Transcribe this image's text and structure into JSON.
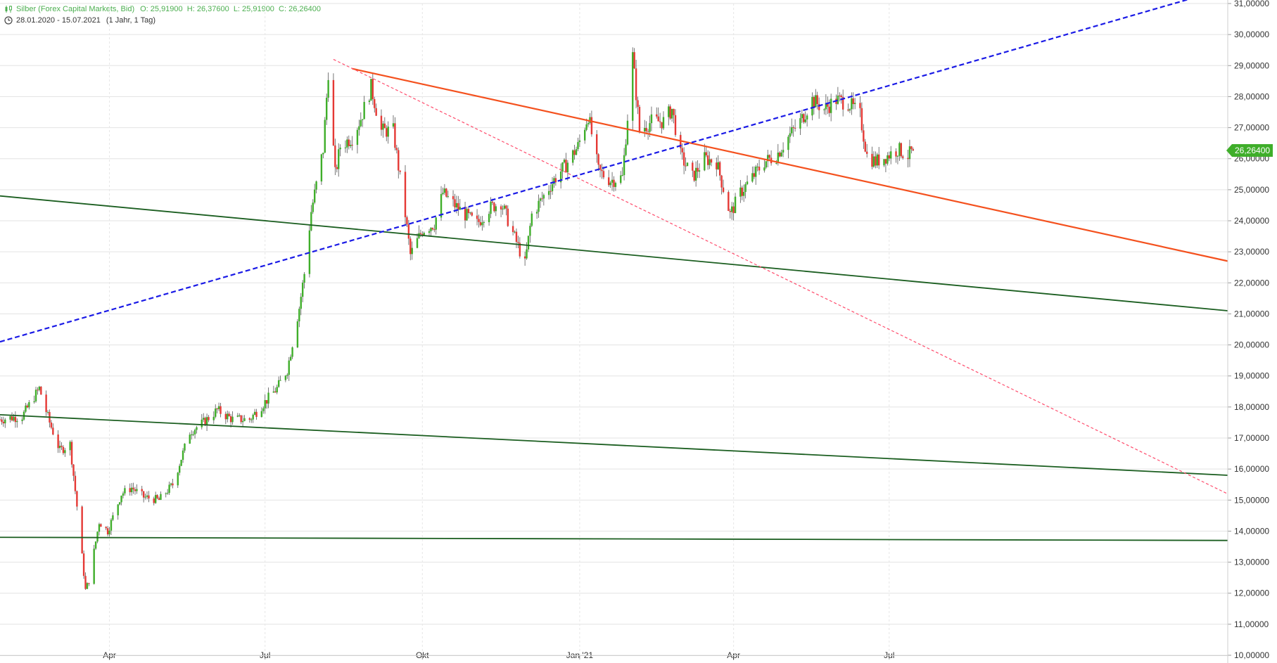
{
  "header": {
    "title": "Silber (Forex Capital Markets, Bid)",
    "ohlc": "O: 25,91900  H: 26,37600  L: 25,91900  C: 26,26400",
    "range": "28.01.2020 - 15.07.2021",
    "range_note": "(1 Jahr, 1 Tag)"
  },
  "colors": {
    "up": "#3fae2a",
    "down": "#e53935",
    "grid": "#e3e3e3",
    "green_line": "#1b5e20",
    "orange_line": "#f4511e",
    "blue_line": "#1a1ae6",
    "pink_line": "#ff4d6d",
    "price_label_bg": "#3fae2a"
  },
  "chart_data": {
    "type": "candlestick",
    "symbol": "Silber",
    "period": "28.01.2020 - 15.07.2021",
    "yaxis": {
      "position": "right",
      "ylim": [
        10,
        31
      ],
      "ticks": [
        {
          "value": 31,
          "label": "31,00000"
        },
        {
          "value": 30,
          "label": "30,00000"
        },
        {
          "value": 29,
          "label": "29,00000"
        },
        {
          "value": 28,
          "label": "28,00000"
        },
        {
          "value": 27,
          "label": "27,00000"
        },
        {
          "value": 26,
          "label": "26,00000"
        },
        {
          "value": 25,
          "label": "25,00000"
        },
        {
          "value": 24,
          "label": "24,00000"
        },
        {
          "value": 23,
          "label": "23,00000"
        },
        {
          "value": 22,
          "label": "22,00000"
        },
        {
          "value": 21,
          "label": "21,00000"
        },
        {
          "value": 20,
          "label": "20,00000"
        },
        {
          "value": 19,
          "label": "19,00000"
        },
        {
          "value": 18,
          "label": "18,00000"
        },
        {
          "value": 17,
          "label": "17,00000"
        },
        {
          "value": 16,
          "label": "16,00000"
        },
        {
          "value": 15,
          "label": "15,00000"
        },
        {
          "value": 14,
          "label": "14,00000"
        },
        {
          "value": 13,
          "label": "13,00000"
        },
        {
          "value": 12,
          "label": "12,00000"
        },
        {
          "value": 11,
          "label": "11,00000"
        },
        {
          "value": 10,
          "label": "10,00000"
        }
      ]
    },
    "xaxis": {
      "range": [
        "2020-01-28",
        "2022-01-15"
      ],
      "ticks": [
        {
          "date": "2020-04-01",
          "label": "Apr"
        },
        {
          "date": "2020-07-01",
          "label": "Jul"
        },
        {
          "date": "2020-10-01",
          "label": "Okt"
        },
        {
          "date": "2021-01-01",
          "label": "Jan '21"
        },
        {
          "date": "2021-04-01",
          "label": "Apr"
        },
        {
          "date": "2021-07-01",
          "label": "Jul"
        }
      ]
    },
    "grid": true,
    "last_price": {
      "value": 26.264,
      "label": "26,26400"
    },
    "price_path": [
      [
        "2020-01-28",
        17.6
      ],
      [
        "2020-02-10",
        17.7
      ],
      [
        "2020-02-20",
        18.6
      ],
      [
        "2020-02-26",
        17.5
      ],
      [
        "2020-03-03",
        16.6
      ],
      [
        "2020-03-09",
        16.8
      ],
      [
        "2020-03-13",
        14.8
      ],
      [
        "2020-03-18",
        12.1
      ],
      [
        "2020-03-20",
        12.4
      ],
      [
        "2020-03-26",
        14.3
      ],
      [
        "2020-03-31",
        14.0
      ],
      [
        "2020-04-08",
        15.2
      ],
      [
        "2020-04-14",
        15.4
      ],
      [
        "2020-04-21",
        15.1
      ],
      [
        "2020-04-30",
        15.0
      ],
      [
        "2020-05-08",
        15.5
      ],
      [
        "2020-05-18",
        17.2
      ],
      [
        "2020-05-26",
        17.5
      ],
      [
        "2020-06-03",
        17.9
      ],
      [
        "2020-06-12",
        17.6
      ],
      [
        "2020-06-22",
        17.6
      ],
      [
        "2020-06-30",
        18.1
      ],
      [
        "2020-07-08",
        18.6
      ],
      [
        "2020-07-14",
        19.2
      ],
      [
        "2020-07-21",
        21.2
      ],
      [
        "2020-07-24",
        22.3
      ],
      [
        "2020-07-28",
        24.3
      ],
      [
        "2020-08-04",
        26.3
      ],
      [
        "2020-08-07",
        28.8
      ],
      [
        "2020-08-11",
        25.5
      ],
      [
        "2020-08-14",
        26.4
      ],
      [
        "2020-08-21",
        26.7
      ],
      [
        "2020-08-26",
        27.3
      ],
      [
        "2020-09-01",
        28.3
      ],
      [
        "2020-09-07",
        26.9
      ],
      [
        "2020-09-14",
        26.9
      ],
      [
        "2020-09-21",
        24.2
      ],
      [
        "2020-09-24",
        22.9
      ],
      [
        "2020-10-01",
        23.7
      ],
      [
        "2020-10-08",
        23.9
      ],
      [
        "2020-10-13",
        24.9
      ],
      [
        "2020-10-20",
        24.5
      ],
      [
        "2020-10-26",
        24.2
      ],
      [
        "2020-11-02",
        23.9
      ],
      [
        "2020-11-09",
        24.4
      ],
      [
        "2020-11-16",
        24.6
      ],
      [
        "2020-11-23",
        23.6
      ],
      [
        "2020-11-30",
        22.6
      ],
      [
        "2020-12-04",
        24.2
      ],
      [
        "2020-12-11",
        24.8
      ],
      [
        "2020-12-18",
        25.4
      ],
      [
        "2020-12-24",
        25.8
      ],
      [
        "2020-12-31",
        26.4
      ],
      [
        "2021-01-06",
        27.4
      ],
      [
        "2021-01-12",
        25.6
      ],
      [
        "2021-01-19",
        25.3
      ],
      [
        "2021-01-26",
        25.4
      ],
      [
        "2021-02-01",
        29.3
      ],
      [
        "2021-02-05",
        26.9
      ],
      [
        "2021-02-12",
        27.2
      ],
      [
        "2021-02-19",
        27.2
      ],
      [
        "2021-02-24",
        27.6
      ],
      [
        "2021-03-01",
        26.1
      ],
      [
        "2021-03-08",
        25.4
      ],
      [
        "2021-03-15",
        26.0
      ],
      [
        "2021-03-22",
        25.9
      ],
      [
        "2021-03-30",
        24.2
      ],
      [
        "2021-04-05",
        24.9
      ],
      [
        "2021-04-12",
        25.4
      ],
      [
        "2021-04-19",
        25.9
      ],
      [
        "2021-04-26",
        26.1
      ],
      [
        "2021-05-03",
        26.7
      ],
      [
        "2021-05-10",
        27.2
      ],
      [
        "2021-05-17",
        27.9
      ],
      [
        "2021-05-24",
        27.6
      ],
      [
        "2021-05-31",
        27.9
      ],
      [
        "2021-06-07",
        27.8
      ],
      [
        "2021-06-14",
        27.4
      ],
      [
        "2021-06-18",
        26.1
      ],
      [
        "2021-06-23",
        25.9
      ],
      [
        "2021-06-30",
        26.1
      ],
      [
        "2021-07-06",
        26.3
      ],
      [
        "2021-07-12",
        26.1
      ],
      [
        "2021-07-15",
        26.264
      ]
    ],
    "trend_lines": [
      {
        "kind": "support",
        "color": "green",
        "dash": "solid",
        "from": [
          "2020-01-28",
          24.8
        ],
        "to": [
          "2022-01-15",
          21.1
        ]
      },
      {
        "kind": "support",
        "color": "green",
        "dash": "solid",
        "from": [
          "2020-01-28",
          17.75
        ],
        "to": [
          "2022-01-15",
          15.8
        ]
      },
      {
        "kind": "support",
        "color": "green",
        "dash": "solid",
        "from": [
          "2020-01-28",
          13.8
        ],
        "to": [
          "2022-01-15",
          13.7
        ]
      },
      {
        "kind": "resistance",
        "color": "orange",
        "dash": "solid",
        "from": [
          "2020-08-21",
          28.9
        ],
        "to": [
          "2022-01-15",
          22.7
        ]
      },
      {
        "kind": "resistance",
        "color": "pink",
        "dash": "dotted",
        "from": [
          "2020-08-10",
          29.2
        ],
        "to": [
          "2022-01-15",
          15.2
        ]
      },
      {
        "kind": "trend",
        "color": "blue",
        "dash": "dashed",
        "from": [
          "2020-01-28",
          20.1
        ],
        "to": [
          "2022-01-15",
          31.5
        ]
      }
    ]
  }
}
